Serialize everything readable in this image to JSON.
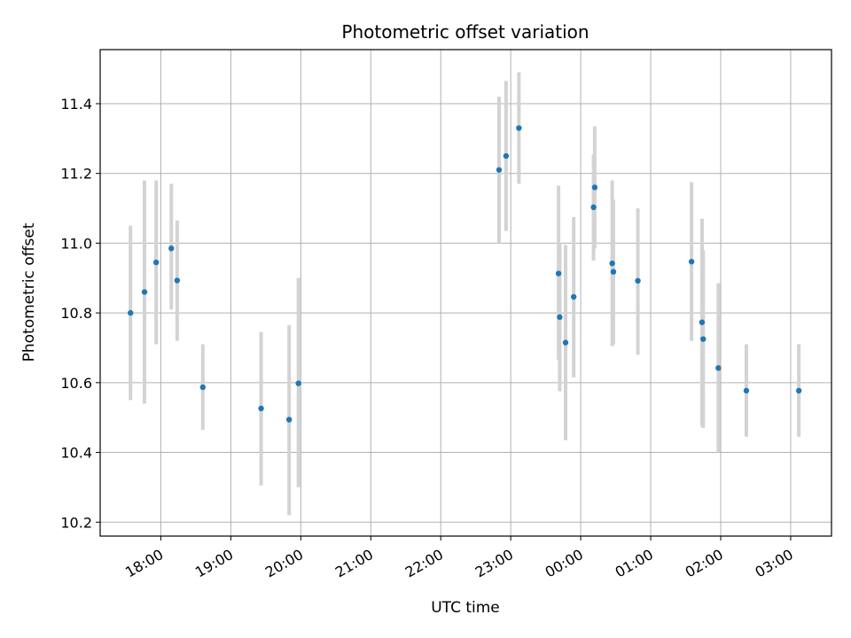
{
  "chart_data": {
    "type": "scatter",
    "title": "Photometric offset variation",
    "xlabel": "UTC time",
    "ylabel": "Photometric offset",
    "xlim": [
      "17:08",
      "03:35"
    ],
    "ylim": [
      10.16,
      11.555
    ],
    "grid": true,
    "colors": {
      "point": "#1f77b4",
      "errorbar": "#d3d3d3",
      "grid": "#b0b0b0",
      "axis": "#000000"
    },
    "x_ticks": [
      "18:00",
      "19:00",
      "20:00",
      "21:00",
      "22:00",
      "23:00",
      "00:00",
      "01:00",
      "02:00",
      "03:00"
    ],
    "y_ticks": [
      "10.2",
      "10.4",
      "10.6",
      "10.8",
      "11.0",
      "11.2",
      "11.4"
    ],
    "series": [
      {
        "points": [
          {
            "t": "17:34",
            "y": 10.8,
            "lo": 10.55,
            "hi": 11.05
          },
          {
            "t": "17:46",
            "y": 10.86,
            "lo": 10.54,
            "hi": 11.18
          },
          {
            "t": "17:56",
            "y": 10.945,
            "lo": 10.71,
            "hi": 11.18
          },
          {
            "t": "18:09",
            "y": 10.985,
            "lo": 10.81,
            "hi": 11.17
          },
          {
            "t": "18:14",
            "y": 10.893,
            "lo": 10.72,
            "hi": 11.065
          },
          {
            "t": "18:36",
            "y": 10.587,
            "lo": 10.465,
            "hi": 10.71
          },
          {
            "t": "19:26",
            "y": 10.526,
            "lo": 10.305,
            "hi": 10.745
          },
          {
            "t": "19:50",
            "y": 10.494,
            "lo": 10.22,
            "hi": 10.765
          },
          {
            "t": "19:58",
            "y": 10.598,
            "lo": 10.3,
            "hi": 10.9
          },
          {
            "t": "22:50",
            "y": 11.21,
            "lo": 11.0,
            "hi": 11.42
          },
          {
            "t": "22:56",
            "y": 11.25,
            "lo": 11.035,
            "hi": 11.465
          },
          {
            "t": "23:07",
            "y": 11.33,
            "lo": 11.17,
            "hi": 11.49
          },
          {
            "t": "23:41",
            "y": 10.913,
            "lo": 10.665,
            "hi": 11.165
          },
          {
            "t": "23:42",
            "y": 10.788,
            "lo": 10.575,
            "hi": 11.0
          },
          {
            "t": "23:47",
            "y": 10.715,
            "lo": 10.435,
            "hi": 10.995
          },
          {
            "t": "23:54",
            "y": 10.846,
            "lo": 10.615,
            "hi": 11.075
          },
          {
            "t": "00:11",
            "y": 11.103,
            "lo": 10.95,
            "hi": 11.255
          },
          {
            "t": "00:12",
            "y": 11.16,
            "lo": 10.985,
            "hi": 11.335
          },
          {
            "t": "00:27",
            "y": 10.942,
            "lo": 10.705,
            "hi": 11.18
          },
          {
            "t": "00:28",
            "y": 10.918,
            "lo": 10.71,
            "hi": 11.125
          },
          {
            "t": "00:49",
            "y": 10.892,
            "lo": 10.68,
            "hi": 11.1
          },
          {
            "t": "01:35",
            "y": 10.947,
            "lo": 10.72,
            "hi": 11.175
          },
          {
            "t": "01:44",
            "y": 10.773,
            "lo": 10.475,
            "hi": 11.07
          },
          {
            "t": "01:45",
            "y": 10.725,
            "lo": 10.47,
            "hi": 10.98
          },
          {
            "t": "01:58",
            "y": 10.642,
            "lo": 10.4,
            "hi": 10.885
          },
          {
            "t": "02:22",
            "y": 10.577,
            "lo": 10.445,
            "hi": 10.71
          },
          {
            "t": "03:07",
            "y": 10.577,
            "lo": 10.445,
            "hi": 10.71
          }
        ]
      }
    ]
  }
}
